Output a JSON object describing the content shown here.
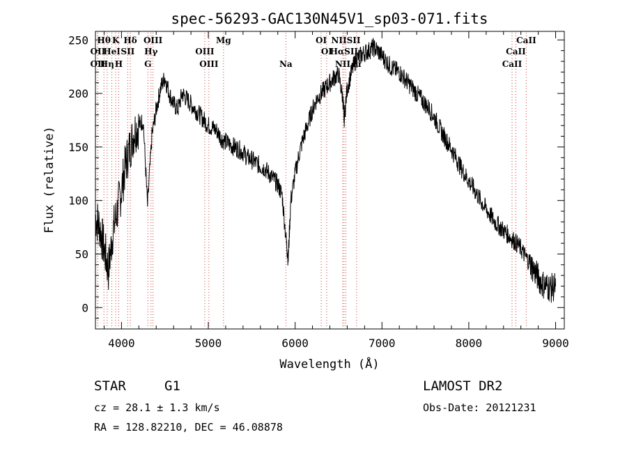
{
  "chart_data": {
    "type": "line",
    "title": "spec-56293-GAC130N45V1_sp03-071.fits",
    "xlabel": "Wavelength (Å)",
    "ylabel": "Flux (relative)",
    "xlim": [
      3700,
      9100
    ],
    "ylim": [
      -20,
      258
    ],
    "xticks": [
      4000,
      5000,
      6000,
      7000,
      8000,
      9000
    ],
    "yticks": [
      0,
      50,
      100,
      150,
      200,
      250
    ],
    "grid": false,
    "series": [
      {
        "x": [
          3700,
          3750,
          3800,
          3850,
          3900,
          3950,
          4000,
          4050,
          4100,
          4150,
          4200,
          4250,
          4300,
          4350,
          4400,
          4450,
          4500,
          4550,
          4600,
          4650,
          4700,
          4750,
          4800,
          4850,
          4900,
          4950,
          5000,
          5050,
          5100,
          5150,
          5200,
          5250,
          5300,
          5350,
          5400,
          5450,
          5500,
          5550,
          5600,
          5650,
          5700,
          5750,
          5800,
          5850,
          5900,
          5920,
          5950,
          6000,
          6050,
          6100,
          6150,
          6200,
          6250,
          6300,
          6350,
          6400,
          6450,
          6500,
          6550,
          6563,
          6600,
          6650,
          6700,
          6750,
          6800,
          6850,
          6900,
          6950,
          7000,
          7050,
          7100,
          7150,
          7200,
          7250,
          7300,
          7350,
          7400,
          7450,
          7500,
          7550,
          7600,
          7650,
          7700,
          7750,
          7800,
          7850,
          7900,
          7950,
          8000,
          8050,
          8100,
          8150,
          8200,
          8250,
          8300,
          8350,
          8400,
          8450,
          8500,
          8550,
          8600,
          8650,
          8700,
          8750,
          8800,
          8850,
          8900,
          8950,
          9000
        ],
        "y": [
          85,
          75,
          55,
          35,
          70,
          90,
          110,
          135,
          150,
          165,
          170,
          175,
          95,
          160,
          185,
          205,
          215,
          200,
          190,
          185,
          200,
          195,
          190,
          185,
          180,
          175,
          170,
          168,
          165,
          158,
          155,
          152,
          150,
          148,
          145,
          140,
          138,
          135,
          132,
          130,
          125,
          120,
          115,
          105,
          60,
          45,
          100,
          125,
          145,
          160,
          172,
          185,
          195,
          200,
          205,
          210,
          215,
          218,
          195,
          175,
          205,
          220,
          232,
          235,
          238,
          240,
          243,
          240,
          235,
          230,
          225,
          222,
          220,
          215,
          210,
          205,
          200,
          195,
          190,
          185,
          178,
          170,
          162,
          155,
          148,
          140,
          132,
          125,
          118,
          112,
          105,
          98,
          92,
          86,
          80,
          76,
          72,
          68,
          64,
          60,
          55,
          48,
          42,
          35,
          28,
          22,
          20,
          18,
          20
        ]
      }
    ],
    "line_markers": [
      {
        "label": "Hθ",
        "x": 3798,
        "row": 1
      },
      {
        "label": "K",
        "x": 3934,
        "row": 1
      },
      {
        "label": "Hδ",
        "x": 4102,
        "row": 1
      },
      {
        "label": "OIII",
        "x": 4363,
        "row": 1
      },
      {
        "label": "Mg",
        "x": 5175,
        "row": 1
      },
      {
        "label": "OI",
        "x": 6300,
        "row": 1
      },
      {
        "label": "NIISII",
        "x": 6584,
        "row": 1
      },
      {
        "label": "CaII",
        "x": 8662,
        "row": 1
      },
      {
        "label": "OII",
        "x": 3727,
        "row": 2
      },
      {
        "label": "HeI",
        "x": 3889,
        "row": 2
      },
      {
        "label": "SII",
        "x": 4072,
        "row": 2
      },
      {
        "label": "Hγ",
        "x": 4340,
        "row": 2
      },
      {
        "label": "OIII",
        "x": 4959,
        "row": 2
      },
      {
        "label": "OI",
        "x": 6363,
        "row": 2
      },
      {
        "label": "HαSII",
        "x": 6563,
        "row": 2
      },
      {
        "label": "CaII",
        "x": 8542,
        "row": 2
      },
      {
        "label": "OII",
        "x": 3727,
        "row": 3
      },
      {
        "label": "Hη",
        "x": 3835,
        "row": 3
      },
      {
        "label": "H",
        "x": 3968,
        "row": 3
      },
      {
        "label": "G",
        "x": 4304,
        "row": 3
      },
      {
        "label": "OIII",
        "x": 5007,
        "row": 3
      },
      {
        "label": "Na",
        "x": 5893,
        "row": 3
      },
      {
        "label": "NII",
        "x": 6548,
        "row": 3
      },
      {
        "label": "Li",
        "x": 6708,
        "row": 3
      },
      {
        "label": "CaII",
        "x": 8498,
        "row": 3
      }
    ]
  },
  "info": {
    "class_label": "STAR",
    "subclass_label": "G1",
    "cz_text": "cz = 28.1 ± 1.3 km/s",
    "coords_text": "RA = 128.82210, DEC =  46.08878",
    "survey": "LAMOST DR2",
    "obs_date": "Obs-Date: 20121231"
  }
}
